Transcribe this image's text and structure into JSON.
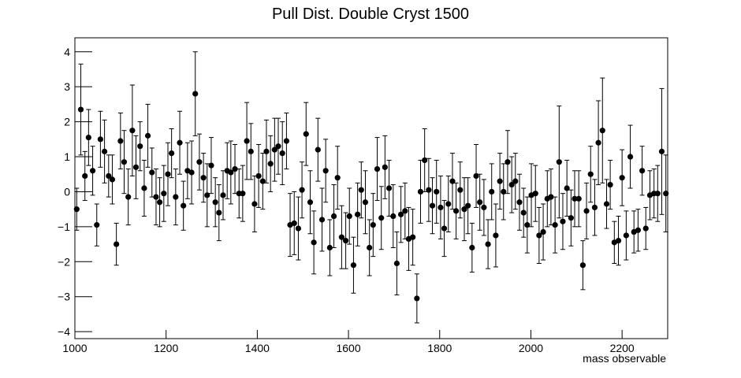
{
  "chart_data": {
    "type": "errorbar",
    "title": "Pull Dist. Double Cryst 1500",
    "x_label": "mass observable",
    "color": "#000000",
    "xlim": [
      1000,
      2300
    ],
    "xticks": [
      1000,
      1200,
      1400,
      1600,
      1800,
      2000,
      2200
    ],
    "ylim": [
      -4.2,
      4.4
    ],
    "yticks": [
      {
        "value": -4,
        "label": "−4"
      },
      {
        "value": -3,
        "label": "−3"
      },
      {
        "value": -2,
        "label": "−2"
      },
      {
        "value": -1,
        "label": "−1"
      },
      0,
      1,
      2,
      3,
      4
    ],
    "x": [
      1004,
      1013,
      1022,
      1030,
      1039,
      1048,
      1056,
      1065,
      1074,
      1082,
      1091,
      1100,
      1108,
      1117,
      1126,
      1134,
      1143,
      1152,
      1160,
      1169,
      1178,
      1186,
      1195,
      1204,
      1212,
      1221,
      1230,
      1238,
      1247,
      1256,
      1264,
      1273,
      1282,
      1290,
      1299,
      1308,
      1316,
      1325,
      1334,
      1342,
      1351,
      1360,
      1368,
      1377,
      1386,
      1394,
      1403,
      1412,
      1420,
      1429,
      1438,
      1446,
      1455,
      1464,
      1472,
      1481,
      1490,
      1498,
      1507,
      1516,
      1524,
      1533,
      1542,
      1550,
      1559,
      1568,
      1576,
      1585,
      1594,
      1602,
      1611,
      1620,
      1628,
      1637,
      1646,
      1654,
      1663,
      1672,
      1680,
      1689,
      1698,
      1706,
      1715,
      1724,
      1732,
      1741,
      1750,
      1758,
      1767,
      1776,
      1784,
      1793,
      1802,
      1810,
      1819,
      1828,
      1836,
      1845,
      1854,
      1862,
      1871,
      1880,
      1888,
      1897,
      1906,
      1914,
      1923,
      1932,
      1940,
      1949,
      1958,
      1966,
      1975,
      1984,
      1992,
      2001,
      2010,
      2018,
      2027,
      2036,
      2044,
      2053,
      2062,
      2070,
      2079,
      2088,
      2096,
      2105,
      2114,
      2122,
      2131,
      2140,
      2148,
      2157,
      2166,
      2174,
      2183,
      2192,
      2200,
      2209,
      2218,
      2226,
      2235,
      2244,
      2252,
      2261,
      2270,
      2278,
      2287,
      2296
    ],
    "values": [
      -0.5,
      2.35,
      0.45,
      1.55,
      0.6,
      -0.95,
      1.5,
      1.15,
      0.45,
      0.35,
      -1.5,
      1.45,
      0.85,
      -0.15,
      1.75,
      0.7,
      1.3,
      0.1,
      1.6,
      0.55,
      -0.15,
      -0.3,
      -0.05,
      0.5,
      1.1,
      -0.15,
      1.4,
      -0.4,
      0.6,
      0.55,
      2.8,
      0.85,
      0.4,
      -0.1,
      0.75,
      -0.3,
      -0.6,
      -0.1,
      0.6,
      0.55,
      0.65,
      -0.05,
      -0.05,
      1.45,
      1.15,
      -0.35,
      0.45,
      0.3,
      1.15,
      0.8,
      1.2,
      1.3,
      1.1,
      1.45,
      -0.95,
      -0.9,
      -1.05,
      0.05,
      1.65,
      -0.3,
      -1.45,
      1.2,
      -0.8,
      0.6,
      -1.6,
      -0.7,
      0.4,
      -1.3,
      -1.4,
      -0.7,
      -2.1,
      -0.65,
      0.05,
      -0.3,
      -1.6,
      -0.95,
      0.65,
      -0.75,
      0.7,
      0.1,
      -0.7,
      -2.05,
      -0.65,
      -0.55,
      -1.35,
      -1.3,
      -3.05,
      0.0,
      0.9,
      0.05,
      -0.4,
      0.0,
      -0.45,
      -1.05,
      -0.35,
      0.3,
      -0.55,
      0.05,
      -0.5,
      -0.4,
      -1.6,
      0.45,
      -0.3,
      -0.45,
      -1.5,
      0.0,
      -1.25,
      0.3,
      0.0,
      0.85,
      0.2,
      0.3,
      -0.3,
      -0.6,
      -0.95,
      -0.1,
      -0.05,
      -1.25,
      -1.15,
      -0.2,
      -0.15,
      -0.95,
      0.85,
      -0.85,
      0.1,
      -0.75,
      -0.2,
      -0.2,
      -2.1,
      -0.55,
      0.5,
      -0.45,
      1.4,
      1.75,
      -0.35,
      0.2,
      -1.45,
      -1.4,
      0.4,
      -1.25,
      1.0,
      -1.15,
      -1.1,
      0.6,
      -1.05,
      -0.1,
      -0.05,
      -0.05,
      1.15,
      -0.05
    ],
    "errors": [
      0.6,
      1.3,
      0.7,
      0.8,
      0.7,
      0.6,
      0.8,
      0.9,
      0.6,
      0.7,
      0.6,
      0.8,
      0.9,
      0.8,
      1.3,
      0.9,
      0.7,
      0.8,
      0.9,
      0.7,
      0.8,
      0.7,
      0.8,
      0.9,
      0.7,
      0.8,
      0.9,
      0.7,
      0.8,
      0.9,
      1.2,
      0.8,
      0.7,
      0.9,
      0.8,
      0.7,
      0.8,
      0.7,
      0.8,
      0.9,
      0.7,
      0.7,
      0.8,
      1.1,
      0.8,
      0.8,
      0.9,
      0.8,
      0.9,
      0.8,
      0.9,
      0.8,
      0.9,
      0.8,
      0.9,
      0.9,
      0.9,
      0.8,
      0.9,
      0.9,
      0.9,
      0.9,
      0.9,
      0.9,
      0.8,
      0.9,
      0.9,
      0.9,
      0.8,
      0.8,
      0.8,
      0.9,
      0.8,
      0.9,
      0.8,
      0.9,
      0.9,
      0.9,
      0.9,
      0.8,
      0.9,
      0.9,
      0.8,
      0.8,
      0.9,
      0.8,
      0.7,
      0.9,
      0.9,
      0.9,
      0.8,
      0.9,
      0.9,
      0.8,
      0.8,
      0.8,
      0.8,
      0.8,
      0.9,
      0.8,
      0.7,
      0.9,
      0.8,
      0.8,
      0.7,
      0.8,
      0.9,
      0.8,
      0.8,
      0.9,
      0.8,
      0.8,
      0.8,
      0.7,
      0.8,
      0.9,
      0.8,
      0.8,
      0.8,
      0.8,
      0.8,
      0.8,
      1.6,
      0.8,
      0.8,
      0.8,
      0.8,
      0.8,
      0.7,
      0.8,
      0.8,
      0.8,
      1.2,
      1.5,
      0.7,
      0.7,
      0.6,
      0.7,
      0.8,
      0.7,
      0.9,
      0.6,
      0.6,
      0.7,
      0.6,
      0.7,
      0.7,
      0.8,
      1.8,
      1.1
    ]
  }
}
